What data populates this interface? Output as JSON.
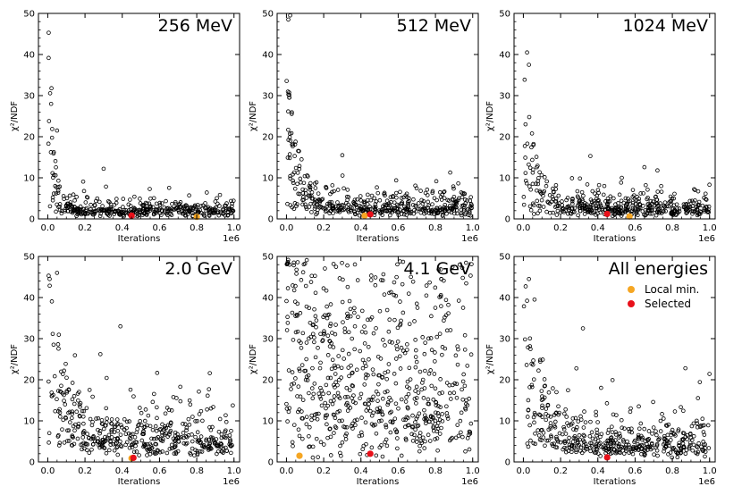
{
  "chart_data": {
    "type": "scatter",
    "layout": "grid-2x3",
    "shared": {
      "xlabel": "Iterations",
      "ylabel": "χ²/NDF",
      "x_offset_text": "1e6",
      "xlim": [
        -0.05,
        1.03
      ],
      "ylim": [
        0,
        50
      ],
      "xticks": [
        0.0,
        0.2,
        0.4,
        0.6,
        0.8,
        1.0
      ],
      "xtick_labels": [
        "0.0",
        "0.2",
        "0.4",
        "0.6",
        "0.8",
        "1.0"
      ],
      "yticks": [
        0,
        10,
        20,
        30,
        40,
        50
      ],
      "ytick_labels": [
        "0",
        "10",
        "20",
        "30",
        "40",
        "50"
      ],
      "marker_edge_color": "#000000",
      "local_min_color": "#f5a623",
      "selected_color": "#e8101a"
    },
    "legend": {
      "panel": 5,
      "placement": "upper-right",
      "entries": [
        {
          "label": "Local min.",
          "color": "#f5a623"
        },
        {
          "label": "Selected",
          "color": "#e8101a"
        }
      ]
    },
    "panels": [
      {
        "title": "256 MeV",
        "profile": {
          "peak": 45,
          "decay": 0.035,
          "base": 1.6,
          "spread": 1.3,
          "count": 420,
          "seed": 11
        },
        "highlights": [
          {
            "type": "local_min",
            "x": 0.8,
            "y": 0.5
          },
          {
            "type": "selected",
            "x": 0.45,
            "y": 0.8
          }
        ],
        "extra_points": [
          {
            "x": 0.005,
            "y": 45.3
          },
          {
            "x": 0.02,
            "y": 31.8
          },
          {
            "x": 0.05,
            "y": 21.5
          },
          {
            "x": 0.3,
            "y": 12.2
          }
        ]
      },
      {
        "title": "512 MeV",
        "profile": {
          "peak": 48,
          "decay": 0.06,
          "base": 2.0,
          "spread": 2.0,
          "count": 460,
          "seed": 23
        },
        "highlights": [
          {
            "type": "local_min",
            "x": 0.42,
            "y": 0.8
          },
          {
            "type": "selected",
            "x": 0.45,
            "y": 1.1
          }
        ],
        "extra_points": [
          {
            "x": 0.01,
            "y": 48.5
          },
          {
            "x": 0.02,
            "y": 49.5
          },
          {
            "x": 0.015,
            "y": 29.5
          },
          {
            "x": 0.3,
            "y": 15.5
          }
        ]
      },
      {
        "title": "1024 MeV",
        "profile": {
          "peak": 40,
          "decay": 0.06,
          "base": 1.9,
          "spread": 1.9,
          "count": 460,
          "seed": 37
        },
        "highlights": [
          {
            "type": "local_min",
            "x": 0.57,
            "y": 0.6
          },
          {
            "type": "selected",
            "x": 0.45,
            "y": 1.2
          }
        ],
        "extra_points": [
          {
            "x": 0.02,
            "y": 40.5
          },
          {
            "x": 0.03,
            "y": 37.5
          },
          {
            "x": 0.36,
            "y": 15.3
          },
          {
            "x": 0.72,
            "y": 11.8
          }
        ]
      },
      {
        "title": "2.0 GeV",
        "profile": {
          "peak": 45,
          "decay": 0.1,
          "base": 3.5,
          "spread": 4.5,
          "count": 460,
          "seed": 53
        },
        "highlights": [
          {
            "type": "local_min",
            "x": 0.45,
            "y": 0.9
          },
          {
            "type": "selected",
            "x": 0.46,
            "y": 1.0
          }
        ],
        "extra_points": [
          {
            "x": 0.01,
            "y": 44.5
          },
          {
            "x": 0.05,
            "y": 46.0
          },
          {
            "x": 0.39,
            "y": 33.0
          },
          {
            "x": 0.87,
            "y": 21.6
          }
        ]
      },
      {
        "title": "4.1 GeV",
        "profile": {
          "peak": 49,
          "decay": 0.3,
          "base": 5.0,
          "spread": 9.0,
          "count": 640,
          "seed": 71,
          "uniform_frac": 0.55
        },
        "highlights": [
          {
            "type": "local_min",
            "x": 0.07,
            "y": 1.5
          },
          {
            "type": "selected",
            "x": 0.45,
            "y": 2.0
          }
        ],
        "extra_points": [
          {
            "x": 0.04,
            "y": 48.5
          },
          {
            "x": 0.61,
            "y": 48.8
          },
          {
            "x": 0.93,
            "y": 48.0
          }
        ]
      },
      {
        "title": "All energies",
        "profile": {
          "peak": 44,
          "decay": 0.1,
          "base": 3.0,
          "spread": 3.5,
          "count": 460,
          "seed": 97
        },
        "highlights": [
          {
            "type": "selected",
            "x": 0.45,
            "y": 1.1
          }
        ],
        "extra_points": [
          {
            "x": 0.03,
            "y": 44.5
          },
          {
            "x": 0.06,
            "y": 39.5
          },
          {
            "x": 0.32,
            "y": 32.5
          },
          {
            "x": 0.87,
            "y": 22.8
          }
        ]
      }
    ]
  }
}
